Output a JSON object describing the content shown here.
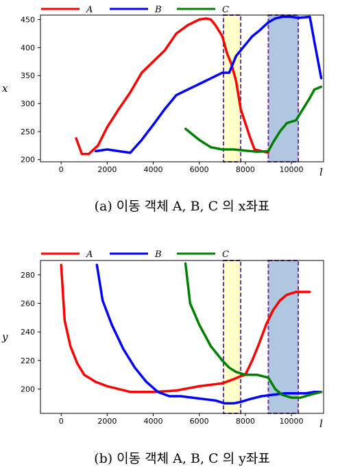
{
  "chart_data": [
    {
      "type": "line",
      "caption": "(a) 이동 객체 A, B, C 의 x좌표",
      "xlabel": "l",
      "ylabel": "x",
      "xlim": [
        -900,
        11400
      ],
      "ylim": [
        196,
        458
      ],
      "xticks": [
        0,
        2000,
        4000,
        6000,
        8000,
        10000
      ],
      "yticks": [
        200,
        250,
        300,
        350,
        400,
        450
      ],
      "legend_position": "top",
      "series": [
        {
          "name": "A",
          "color": "#ff0000",
          "x": [
            650,
            900,
            1200,
            1600,
            2000,
            2500,
            3000,
            3500,
            4000,
            4500,
            5000,
            5500,
            6000,
            6300,
            6500,
            6700,
            7000,
            7200,
            7400,
            7600,
            7800,
            8000,
            8200,
            8400,
            9000
          ],
          "y": [
            238,
            210,
            210,
            225,
            258,
            290,
            320,
            355,
            375,
            395,
            425,
            440,
            450,
            452,
            450,
            440,
            420,
            390,
            370,
            340,
            290,
            265,
            240,
            218,
            212
          ]
        },
        {
          "name": "B",
          "color": "#0000ff",
          "x": [
            1500,
            2000,
            2500,
            3000,
            3500,
            4000,
            4500,
            5000,
            5500,
            6000,
            6500,
            7000,
            7300,
            7600,
            7800,
            8000,
            8300,
            8600,
            9000,
            9300,
            9600,
            10000,
            10300,
            10800,
            11000,
            11300
          ],
          "y": [
            215,
            218,
            215,
            212,
            235,
            262,
            290,
            315,
            325,
            335,
            345,
            355,
            355,
            385,
            395,
            405,
            420,
            430,
            445,
            452,
            455,
            455,
            453,
            455,
            410,
            345
          ]
        },
        {
          "name": "C",
          "color": "#008000",
          "x": [
            5400,
            5700,
            6000,
            6500,
            7000,
            7500,
            8000,
            8500,
            9000,
            9200,
            9500,
            9800,
            10200,
            10500,
            10800,
            11000,
            11300
          ],
          "y": [
            255,
            245,
            235,
            222,
            218,
            218,
            216,
            214,
            215,
            230,
            250,
            265,
            270,
            290,
            310,
            325,
            330
          ]
        }
      ],
      "highlights": [
        {
          "x": [
            7050,
            7800
          ],
          "color": "#ffff99"
        },
        {
          "x": [
            9000,
            10300
          ],
          "color": "#5f8fbf"
        }
      ]
    },
    {
      "type": "line",
      "caption": "(b) 이동 객체 A, B, C 의 y좌표",
      "xlabel": "l",
      "ylabel": "y",
      "xlim": [
        -900,
        11400
      ],
      "ylim": [
        183,
        290
      ],
      "xticks": [
        0,
        2000,
        4000,
        6000,
        8000,
        10000
      ],
      "yticks": [
        200,
        220,
        240,
        260,
        280
      ],
      "legend_position": "top",
      "series": [
        {
          "name": "A",
          "color": "#ff0000",
          "x": [
            0,
            150,
            400,
            700,
            1000,
            1500,
            2000,
            3000,
            4000,
            5000,
            6000,
            7000,
            7500,
            7800,
            8000,
            8300,
            8600,
            8900,
            9200,
            9500,
            9800,
            10200,
            10800
          ],
          "y": [
            287,
            248,
            230,
            218,
            210,
            205,
            202,
            198,
            198,
            199,
            202,
            204,
            207,
            209,
            210,
            220,
            232,
            245,
            255,
            262,
            266,
            268,
            268
          ]
        },
        {
          "name": "B",
          "color": "#0000ff",
          "x": [
            1550,
            1800,
            2200,
            2700,
            3200,
            3700,
            4200,
            4700,
            5200,
            5700,
            6200,
            6700,
            7100,
            7500,
            7800,
            8200,
            8700,
            9200,
            9700,
            10200,
            10600,
            11000,
            11300
          ],
          "y": [
            287,
            262,
            245,
            228,
            215,
            205,
            198,
            195,
            195,
            194,
            193,
            192,
            190,
            190,
            191,
            193,
            195,
            196,
            197,
            197,
            197,
            198,
            198
          ]
        },
        {
          "name": "C",
          "color": "#008000",
          "x": [
            5400,
            5600,
            6000,
            6500,
            7000,
            7300,
            7600,
            8000,
            8500,
            9000,
            9300,
            9600,
            10000,
            10400,
            10800,
            11300
          ],
          "y": [
            288,
            260,
            245,
            230,
            220,
            215,
            212,
            210,
            210,
            208,
            200,
            196,
            194,
            194,
            196,
            198
          ]
        }
      ],
      "highlights": [
        {
          "x": [
            7050,
            7800
          ],
          "color": "#ffff99"
        },
        {
          "x": [
            9000,
            10300
          ],
          "color": "#5f8fbf"
        }
      ]
    }
  ]
}
